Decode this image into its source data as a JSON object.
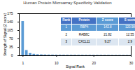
{
  "chart_data": {
    "type": "bar",
    "title": "Human Protein Microarray Specificity Validation",
    "xlabel": "Signal Rank",
    "ylabel": "Strength of Signal (Z score)",
    "x": [
      1,
      2,
      3,
      4,
      5,
      6,
      7,
      8,
      9,
      10,
      11,
      12,
      13,
      14,
      15,
      16,
      17,
      18,
      19,
      20,
      21,
      22,
      23,
      24,
      25,
      26,
      27,
      28,
      29,
      30
    ],
    "values": [
      142.8,
      21.82,
      9.27,
      6.37,
      4.5,
      3.8,
      3.2,
      2.9,
      2.6,
      2.4,
      2.2,
      2.1,
      2.0,
      1.9,
      1.85,
      1.8,
      1.75,
      1.7,
      1.65,
      1.6,
      1.55,
      1.5,
      1.45,
      1.42,
      1.39,
      1.36,
      1.33,
      1.3,
      1.27,
      1.24
    ],
    "color": "#5b9bd5",
    "xlim": [
      0,
      30
    ],
    "xticks": [
      1,
      10,
      20,
      30
    ],
    "ylim": [
      0,
      175
    ],
    "yticks": [
      0,
      35,
      70,
      105,
      140,
      175
    ],
    "table": {
      "headers": [
        "Rank",
        "Protein",
        "Z score",
        "S score"
      ],
      "rows": [
        [
          "1",
          "RBP4",
          "142.8",
          "120.98"
        ],
        [
          "2",
          "RAB8C",
          "21.82",
          "12.55"
        ],
        [
          "3",
          "CXCL11",
          "9.27",
          "2.9"
        ]
      ]
    }
  }
}
